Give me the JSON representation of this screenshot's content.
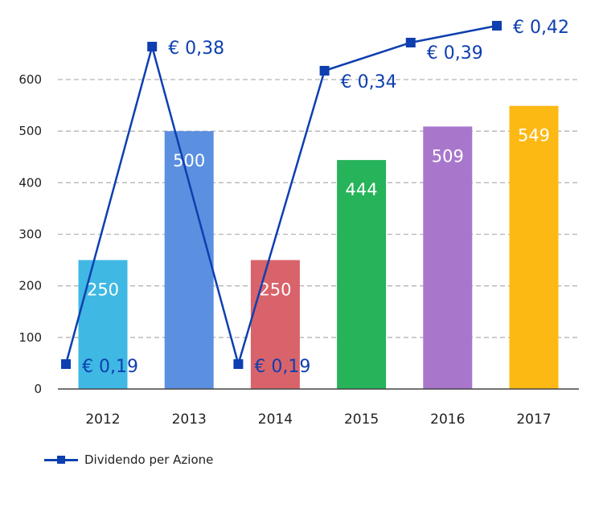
{
  "chart_data": {
    "type": "bar",
    "categories": [
      "2012",
      "2013",
      "2014",
      "2015",
      "2016",
      "2017"
    ],
    "series": [
      {
        "type": "bar",
        "values": [
          250,
          500,
          250,
          444,
          509,
          549
        ],
        "labels": [
          "250",
          "500",
          "250",
          "444",
          "509",
          "549"
        ],
        "colors": [
          "#3fb8e3",
          "#5b8fe0",
          "#d9636a",
          "#26b35a",
          "#a877cc",
          "#fdb913"
        ]
      },
      {
        "type": "line",
        "name": "Dividendo per Azione",
        "values": [
          0.19,
          0.38,
          0.19,
          0.34,
          0.39,
          0.42
        ],
        "labels": [
          "€ 0,19",
          "€ 0,38",
          "€ 0,19",
          "€ 0,34",
          "€ 0,39",
          "€ 0,42"
        ],
        "color": "#0d3fb0"
      }
    ],
    "yticks": [
      "0",
      "100",
      "200",
      "300",
      "400",
      "500",
      "600"
    ],
    "ylim": [
      0,
      600
    ],
    "grid": true,
    "legend_position": "bottom-left"
  }
}
